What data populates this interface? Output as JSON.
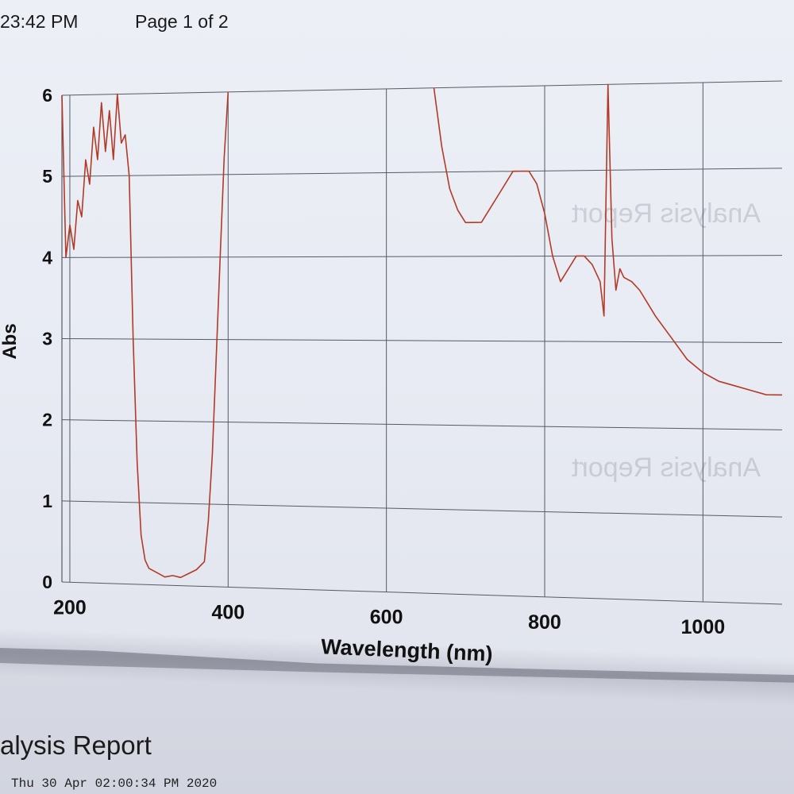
{
  "header": {
    "time": "23:42 PM",
    "page": "Page 1 of 2"
  },
  "report": {
    "title": "alysis Report",
    "date": "Thu 30 Apr 02:00:34 PM 2020"
  },
  "colors": {
    "trace": "#b23a26",
    "grid": "#555a66"
  },
  "chart_data": {
    "type": "line",
    "title": "",
    "xlabel": "Wavelength (nm)",
    "ylabel": "Abs",
    "xlim": [
      190,
      1100
    ],
    "ylim": [
      0,
      6
    ],
    "xticks": [
      200,
      400,
      600,
      800,
      1000
    ],
    "yticks": [
      0,
      1,
      2,
      3,
      4,
      5,
      6
    ],
    "grid": true,
    "series": [
      {
        "name": "",
        "x": [
          190,
          195,
          200,
          205,
          210,
          215,
          220,
          225,
          230,
          235,
          240,
          245,
          250,
          255,
          260,
          265,
          270,
          275,
          280,
          285,
          290,
          295,
          300,
          310,
          320,
          330,
          340,
          350,
          360,
          370,
          375,
          380,
          385,
          390,
          395,
          400
        ],
        "y": [
          6.0,
          4.0,
          4.4,
          4.1,
          4.7,
          4.5,
          5.2,
          4.9,
          5.6,
          5.2,
          5.9,
          5.3,
          5.8,
          5.2,
          6.0,
          5.4,
          5.5,
          5.0,
          3.0,
          1.5,
          0.6,
          0.3,
          0.2,
          0.15,
          0.1,
          0.12,
          0.1,
          0.15,
          0.2,
          0.3,
          0.8,
          1.6,
          2.8,
          4.0,
          5.2,
          6.0
        ]
      },
      {
        "name": "",
        "x": [
          660,
          670,
          680,
          690,
          700,
          720,
          740,
          760,
          780,
          790,
          800,
          810,
          820,
          830,
          840,
          850,
          860,
          870,
          875,
          880,
          885,
          890,
          895,
          900,
          910,
          920,
          930,
          940,
          960,
          980,
          1000,
          1020,
          1040,
          1060,
          1080,
          1100
        ],
        "y": [
          6.0,
          5.3,
          4.8,
          4.55,
          4.4,
          4.4,
          4.7,
          5.0,
          5.0,
          4.85,
          4.5,
          4.0,
          3.7,
          3.85,
          4.0,
          4.0,
          3.9,
          3.7,
          3.3,
          6.0,
          4.2,
          3.6,
          3.85,
          3.75,
          3.7,
          3.6,
          3.45,
          3.3,
          3.05,
          2.8,
          2.65,
          2.55,
          2.5,
          2.45,
          2.4,
          2.4
        ]
      }
    ]
  }
}
